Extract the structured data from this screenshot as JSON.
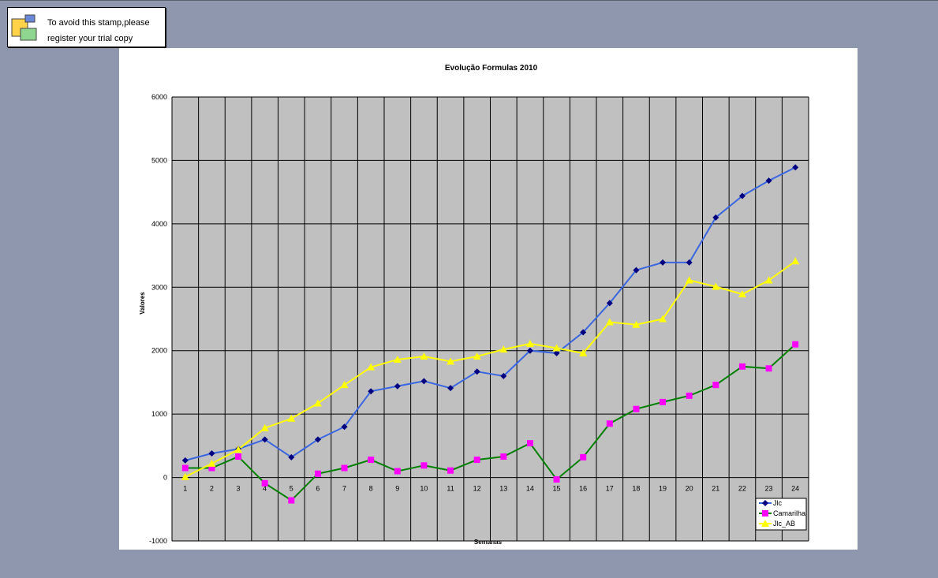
{
  "stamp": {
    "line1": "To avoid this stamp,please",
    "line2": "register your trial copy"
  },
  "colors": {
    "desktop": "#8e97ad",
    "plot_area": "#c0c0c0",
    "grid": "#000000"
  },
  "chart_data": {
    "type": "line",
    "title": "Evolução Formulas 2010",
    "xlabel": "Semanas",
    "ylabel": "Valores",
    "ylim": [
      -1000,
      6000
    ],
    "ytick_step": 1000,
    "ytick_labels": [
      "6000",
      "5000",
      "4000",
      "3000",
      "2000",
      "1000",
      "0",
      "-1000"
    ],
    "categories": [
      "1",
      "2",
      "3",
      "4",
      "5",
      "6",
      "7",
      "8",
      "9",
      "10",
      "11",
      "12",
      "13",
      "14",
      "15",
      "16",
      "17",
      "18",
      "19",
      "20",
      "21",
      "22",
      "23",
      "24"
    ],
    "grid": true,
    "legend_position": "bottom-right",
    "series": [
      {
        "name": "Jlc",
        "color": "#3a66e0",
        "marker": "diamond",
        "marker_color": "#000080",
        "values": [
          270,
          380,
          450,
          600,
          320,
          600,
          800,
          1360,
          1440,
          1520,
          1410,
          1670,
          1600,
          2000,
          1960,
          2290,
          2750,
          3270,
          3390,
          3390,
          4100,
          4440,
          4680,
          4890
        ]
      },
      {
        "name": "Camarilha",
        "color": "#008000",
        "marker": "square",
        "marker_color": "#ff00ff",
        "values": [
          150,
          150,
          330,
          -90,
          -360,
          60,
          150,
          280,
          100,
          190,
          110,
          280,
          330,
          540,
          -30,
          320,
          850,
          1080,
          1190,
          1290,
          1460,
          1750,
          1720,
          2100
        ]
      },
      {
        "name": "Jlc_AB",
        "color": "#ffff00",
        "marker": "triangle",
        "marker_color": "#ffff00",
        "values": [
          10,
          220,
          440,
          780,
          930,
          1170,
          1460,
          1740,
          1860,
          1910,
          1830,
          1910,
          2020,
          2110,
          2040,
          1960,
          2450,
          2410,
          2500,
          3110,
          3010,
          2890,
          3110,
          3410
        ]
      }
    ]
  }
}
